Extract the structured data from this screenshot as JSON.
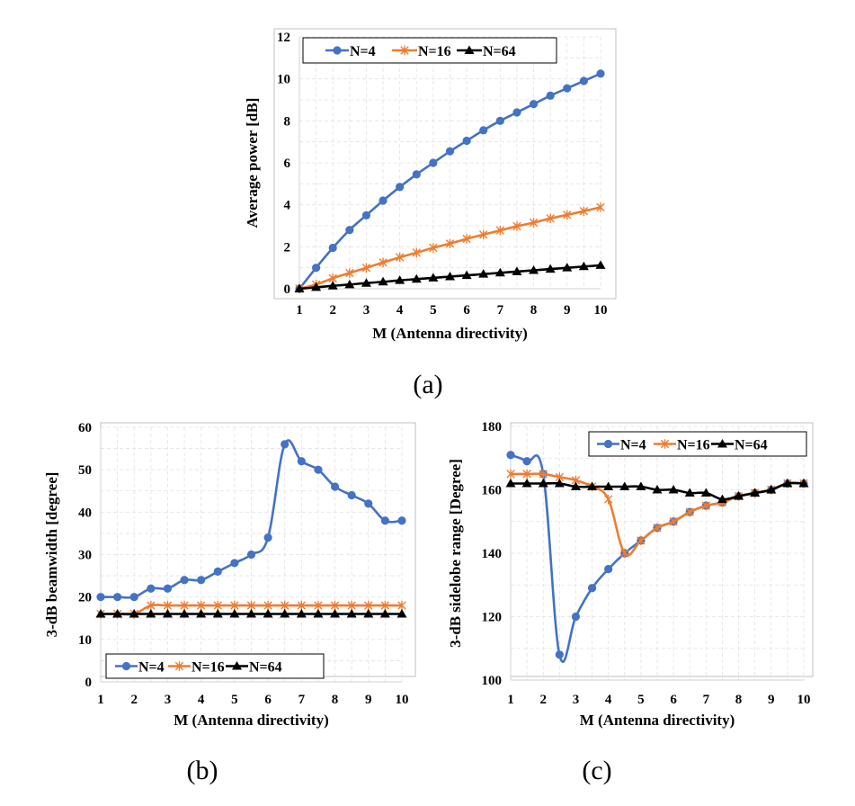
{
  "chart_data": [
    {
      "id": "a",
      "type": "line",
      "caption": "(a)",
      "title": "",
      "xlabel": "M (Antenna directivity)",
      "ylabel": "Average power [dB]",
      "xlim": [
        1,
        10
      ],
      "ylim": [
        0,
        12
      ],
      "xticks": [
        "1",
        "2",
        "3",
        "4",
        "5",
        "6",
        "7",
        "8",
        "9",
        "10"
      ],
      "yticks": [
        "0",
        "2",
        "4",
        "6",
        "8",
        "10",
        "12"
      ],
      "grid": true,
      "legend": "top",
      "x": [
        1,
        1.5,
        2,
        2.5,
        3,
        3.5,
        4,
        4.5,
        5,
        5.5,
        6,
        6.5,
        7,
        7.5,
        8,
        8.5,
        9,
        9.5,
        10
      ],
      "series": [
        {
          "name": "N=4",
          "color": "#4472c4",
          "marker": "circle",
          "values": [
            0,
            1.0,
            1.95,
            2.8,
            3.5,
            4.2,
            4.85,
            5.45,
            6.0,
            6.55,
            7.05,
            7.55,
            8.0,
            8.4,
            8.8,
            9.2,
            9.55,
            9.9,
            10.25
          ]
        },
        {
          "name": "N=16",
          "color": "#ed7d31",
          "marker": "star",
          "values": [
            0,
            0.2,
            0.5,
            0.75,
            1.0,
            1.25,
            1.5,
            1.72,
            1.95,
            2.15,
            2.38,
            2.58,
            2.78,
            2.98,
            3.15,
            3.35,
            3.52,
            3.7,
            3.88
          ]
        },
        {
          "name": "N=64",
          "color": "#000000",
          "marker": "triangle",
          "values": [
            0,
            0.07,
            0.14,
            0.2,
            0.27,
            0.33,
            0.4,
            0.46,
            0.52,
            0.58,
            0.64,
            0.7,
            0.76,
            0.82,
            0.88,
            0.94,
            1.0,
            1.06,
            1.12
          ]
        }
      ]
    },
    {
      "id": "b",
      "type": "line",
      "caption": "(b)",
      "title": "",
      "xlabel": "M (Antenna directivity)",
      "ylabel": "3-dB beamwidth [degree]",
      "xlim": [
        1,
        10
      ],
      "ylim": [
        0,
        60
      ],
      "xticks": [
        "1",
        "2",
        "3",
        "4",
        "5",
        "6",
        "7",
        "8",
        "9",
        "10"
      ],
      "yticks": [
        "0",
        "10",
        "20",
        "30",
        "40",
        "50",
        "60"
      ],
      "grid": true,
      "legend": "bottom-left",
      "x": [
        1,
        1.5,
        2,
        2.5,
        3,
        3.5,
        4,
        4.5,
        5,
        5.5,
        6,
        6.5,
        7,
        7.5,
        8,
        8.5,
        9,
        9.5,
        10
      ],
      "series": [
        {
          "name": "N=4",
          "color": "#4472c4",
          "marker": "circle",
          "values": [
            20,
            20,
            20,
            22,
            22,
            24,
            24,
            26,
            28,
            30,
            34,
            56,
            52,
            50,
            46,
            44,
            42,
            38,
            38
          ]
        },
        {
          "name": "N=16",
          "color": "#ed7d31",
          "marker": "star",
          "values": [
            16,
            16,
            16,
            18,
            18,
            18,
            18,
            18,
            18,
            18,
            18,
            18,
            18,
            18,
            18,
            18,
            18,
            18,
            18
          ]
        },
        {
          "name": "N=64",
          "color": "#000000",
          "marker": "triangle",
          "values": [
            16,
            16,
            16,
            16,
            16,
            16,
            16,
            16,
            16,
            16,
            16,
            16,
            16,
            16,
            16,
            16,
            16,
            16,
            16
          ]
        }
      ]
    },
    {
      "id": "c",
      "type": "line",
      "caption": "(c)",
      "title": "",
      "xlabel": "M (Antenna directivity)",
      "ylabel": "3-dB sidelobe range [Degree]",
      "xlim": [
        1,
        10
      ],
      "ylim": [
        100,
        180
      ],
      "xticks": [
        "1",
        "2",
        "3",
        "4",
        "5",
        "6",
        "7",
        "8",
        "9",
        "10"
      ],
      "yticks": [
        "100",
        "120",
        "140",
        "160",
        "180"
      ],
      "grid": true,
      "legend": "top-right",
      "x": [
        1,
        1.5,
        2,
        2.5,
        3,
        3.5,
        4,
        4.5,
        5,
        5.5,
        6,
        6.5,
        7,
        7.5,
        8,
        8.5,
        9,
        9.5,
        10
      ],
      "series": [
        {
          "name": "N=4",
          "color": "#4472c4",
          "marker": "circle",
          "values": [
            171,
            169,
            165,
            108,
            120,
            129,
            135,
            140,
            144,
            148,
            150,
            153,
            155,
            156,
            158,
            159,
            160,
            162,
            162
          ]
        },
        {
          "name": "N=16",
          "color": "#ed7d31",
          "marker": "star",
          "values": [
            165,
            165,
            165,
            164,
            163,
            161,
            157,
            140,
            144,
            148,
            150,
            153,
            155,
            156,
            158,
            159,
            160,
            162,
            162
          ]
        },
        {
          "name": "N=64",
          "color": "#000000",
          "marker": "triangle",
          "values": [
            162,
            162,
            162,
            162,
            161,
            161,
            161,
            161,
            161,
            160,
            160,
            159,
            159,
            157,
            158,
            159,
            160,
            162,
            162
          ]
        }
      ]
    }
  ]
}
